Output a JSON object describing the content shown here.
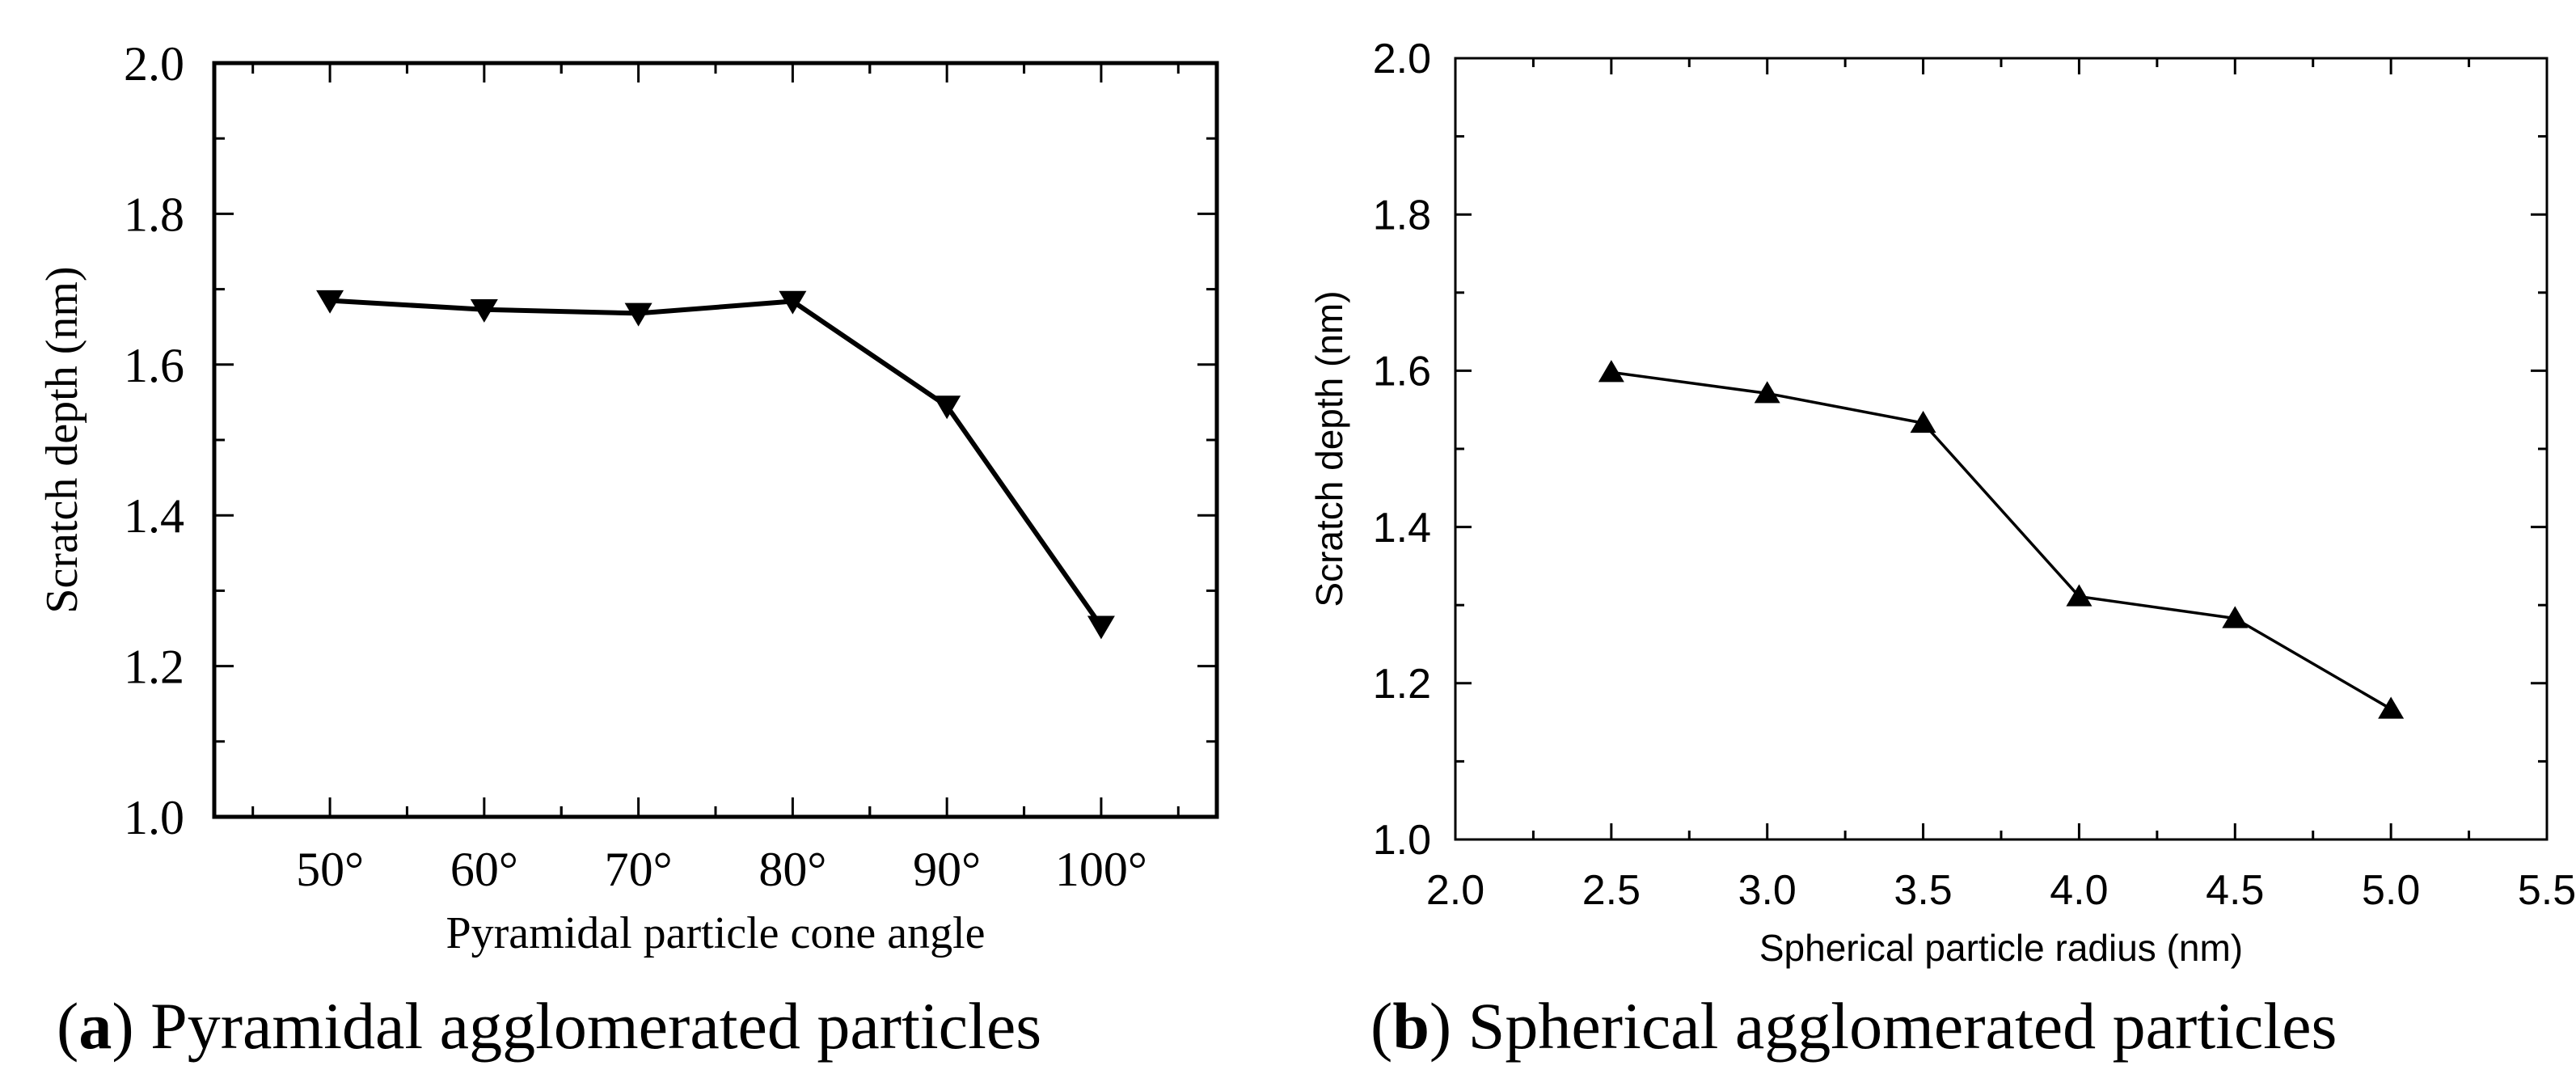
{
  "colors": {
    "ink": "#000000",
    "background": "#ffffff"
  },
  "chart_data": [
    {
      "type": "line",
      "panel": "a",
      "caption_letter": "a",
      "caption_text": "Pyramidal agglomerated particles",
      "xlabel": "Pyramidal particle cone angle",
      "ylabel": "Scratch depth (nm)",
      "categories": [
        "50°",
        "60°",
        "70°",
        "80°",
        "90°",
        "100°"
      ],
      "values": [
        1.685,
        1.673,
        1.668,
        1.684,
        1.545,
        1.253
      ],
      "marker": "triangle-down",
      "ylim": [
        1.0,
        2.0
      ],
      "yticks": [
        "1.0",
        "1.2",
        "1.4",
        "1.6",
        "1.8",
        "2.0"
      ],
      "grid": false,
      "legend": "none"
    },
    {
      "type": "line",
      "panel": "b",
      "caption_letter": "b",
      "caption_text": "Spherical agglomerated particles",
      "xlabel": "Spherical particle radius (nm)",
      "ylabel": "Scratch depth (nm)",
      "x": [
        2.5,
        3.0,
        3.5,
        4.0,
        4.5,
        5.0
      ],
      "values": [
        1.598,
        1.571,
        1.533,
        1.311,
        1.283,
        1.167
      ],
      "marker": "triangle-up",
      "xlim": [
        2.0,
        5.5
      ],
      "xticks": [
        "2.0",
        "2.5",
        "3.0",
        "3.5",
        "4.0",
        "4.5",
        "5.0",
        "5.5"
      ],
      "ylim": [
        1.0,
        2.0
      ],
      "yticks": [
        "1.0",
        "1.2",
        "1.4",
        "1.6",
        "1.8",
        "2.0"
      ],
      "grid": false,
      "legend": "none"
    }
  ]
}
